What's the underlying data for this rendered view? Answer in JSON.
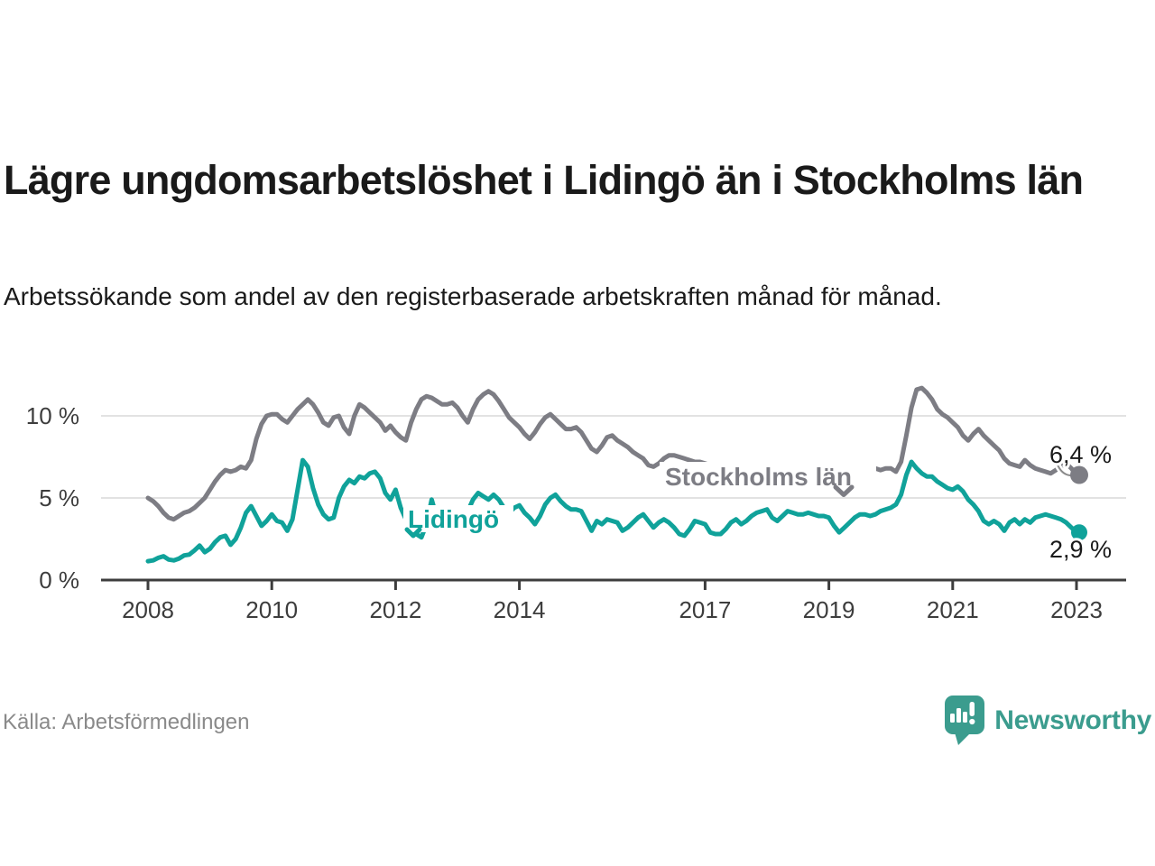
{
  "header": {
    "title": "Lägre ungdomsarbetslöshet i Lidingö än i Stockholms län",
    "subtitle": "Arbetssökande som andel av den registerbaserade arbetskraften månad för månad."
  },
  "footer": {
    "source": "Källa: Arbetsförmedlingen",
    "brand": "Newsworthy"
  },
  "colors": {
    "stockholm_line": "#7d7d84",
    "lidingo_line": "#10a29a",
    "axis": "#3d3d3d",
    "grid": "#d9d9d9",
    "value_label": "#1a1a1a",
    "source_text": "#8a8a8a",
    "brand_teal": "#3b9c8e"
  },
  "chart_data": {
    "type": "line",
    "title": "Lägre ungdomsarbetslöshet i Lidingö än i Stockholms län",
    "ylabel": "",
    "xlabel": "",
    "unit": "%",
    "frequency": "monthly",
    "x_start": "2008-01",
    "x_end": "2023-01",
    "ylim": [
      0,
      12.3
    ],
    "grid": "horizontal",
    "legend_position": "inline-labels",
    "x_ticks": [
      2008,
      2010,
      2012,
      2014,
      2017,
      2019,
      2021,
      2023
    ],
    "y_ticks": [
      {
        "value": 0,
        "label": "0 %"
      },
      {
        "value": 5,
        "label": "5 %"
      },
      {
        "value": 10,
        "label": "10 %"
      }
    ],
    "series": [
      {
        "name": "Stockholms län",
        "color": "#7d7d84",
        "end_label": "6,4 %",
        "end_value": 6.4,
        "values": [
          5.0,
          4.8,
          4.5,
          4.1,
          3.8,
          3.7,
          3.9,
          4.1,
          4.2,
          4.4,
          4.7,
          5.0,
          5.5,
          6.0,
          6.4,
          6.7,
          6.6,
          6.7,
          6.9,
          6.8,
          7.3,
          8.6,
          9.5,
          10.0,
          10.1,
          10.1,
          9.8,
          9.6,
          10.0,
          10.4,
          10.7,
          11.0,
          10.7,
          10.2,
          9.6,
          9.4,
          9.9,
          10.0,
          9.3,
          8.9,
          10.0,
          10.7,
          10.5,
          10.2,
          9.9,
          9.6,
          9.1,
          9.4,
          9.0,
          8.7,
          8.5,
          9.6,
          10.4,
          11.0,
          11.2,
          11.1,
          10.9,
          10.7,
          10.7,
          10.8,
          10.5,
          10.0,
          9.6,
          10.4,
          11.0,
          11.3,
          11.5,
          11.3,
          10.9,
          10.4,
          9.9,
          9.6,
          9.3,
          8.9,
          8.6,
          9.0,
          9.5,
          9.9,
          10.1,
          9.8,
          9.5,
          9.2,
          9.2,
          9.3,
          9.0,
          8.5,
          8.0,
          7.8,
          8.2,
          8.7,
          8.8,
          8.5,
          8.3,
          8.1,
          7.8,
          7.6,
          7.4,
          7.0,
          6.9,
          7.1,
          7.4,
          7.6,
          7.6,
          7.5,
          7.4,
          7.3,
          7.2,
          7.2,
          7.1,
          7.0,
          6.9,
          6.8,
          6.8,
          6.9,
          6.9,
          6.8,
          6.7,
          6.6,
          6.6,
          6.6,
          6.6,
          6.5,
          6.4,
          6.4,
          6.4,
          6.5,
          6.6,
          6.5,
          6.4,
          6.4,
          6.4,
          6.5,
          6.5,
          6.4,
          6.4,
          6.5,
          6.6,
          6.7,
          6.8,
          6.8,
          6.7,
          6.8,
          6.7,
          6.8,
          6.8,
          6.6,
          7.2,
          8.8,
          10.5,
          11.6,
          11.7,
          11.4,
          11.0,
          10.4,
          10.1,
          9.9,
          9.6,
          9.3,
          8.8,
          8.5,
          8.9,
          9.2,
          8.8,
          8.5,
          8.2,
          7.9,
          7.4,
          7.1,
          7.0,
          6.9,
          7.3,
          7.0,
          6.8,
          6.7,
          6.6,
          6.5,
          6.7,
          6.9,
          7.1,
          6.8,
          6.4
        ]
      },
      {
        "name": "Lidingö",
        "color": "#10a29a",
        "end_label": "2,9 %",
        "end_value": 2.9,
        "values": [
          1.15,
          1.2,
          1.35,
          1.45,
          1.25,
          1.2,
          1.3,
          1.5,
          1.55,
          1.8,
          2.1,
          1.7,
          1.9,
          2.3,
          2.6,
          2.7,
          2.15,
          2.5,
          3.2,
          4.1,
          4.5,
          3.9,
          3.3,
          3.6,
          4.0,
          3.6,
          3.5,
          3.0,
          3.7,
          5.5,
          7.3,
          6.9,
          5.6,
          4.6,
          4.0,
          3.7,
          3.8,
          5.0,
          5.7,
          6.1,
          5.9,
          6.3,
          6.2,
          6.5,
          6.6,
          6.2,
          5.3,
          4.9,
          5.5,
          4.4,
          3.7,
          3.3,
          2.8,
          2.6,
          3.4,
          4.9,
          3.8,
          3.1,
          3.1,
          3.3,
          3.5,
          3.8,
          4.2,
          4.9,
          5.3,
          5.1,
          4.9,
          5.2,
          4.9,
          4.4,
          4.1,
          4.4,
          4.55,
          4.1,
          3.8,
          3.4,
          3.9,
          4.6,
          5.0,
          5.2,
          4.8,
          4.5,
          4.3,
          4.3,
          4.2,
          3.6,
          3.0,
          3.6,
          3.4,
          3.7,
          3.6,
          3.5,
          3.0,
          3.2,
          3.5,
          3.8,
          4.0,
          3.6,
          3.2,
          3.5,
          3.7,
          3.5,
          3.2,
          2.8,
          2.7,
          3.1,
          3.6,
          3.5,
          3.4,
          2.9,
          2.8,
          2.8,
          3.1,
          3.5,
          3.7,
          3.4,
          3.6,
          3.9,
          4.1,
          4.2,
          4.3,
          3.8,
          3.6,
          3.9,
          4.2,
          4.1,
          4.0,
          4.0,
          4.1,
          4.0,
          3.9,
          3.9,
          3.8,
          3.3,
          2.9,
          3.2,
          3.5,
          3.8,
          4.0,
          4.0,
          3.9,
          4.0,
          4.2,
          4.3,
          4.4,
          4.6,
          5.2,
          6.4,
          7.2,
          6.8,
          6.5,
          6.3,
          6.3,
          6.0,
          5.8,
          5.6,
          5.5,
          5.7,
          5.4,
          4.9,
          4.6,
          4.2,
          3.6,
          3.4,
          3.6,
          3.4,
          3.0,
          3.5,
          3.7,
          3.4,
          3.7,
          3.5,
          3.8,
          3.9,
          4.0,
          3.9,
          3.8,
          3.7,
          3.5,
          3.2,
          2.9
        ]
      }
    ]
  }
}
